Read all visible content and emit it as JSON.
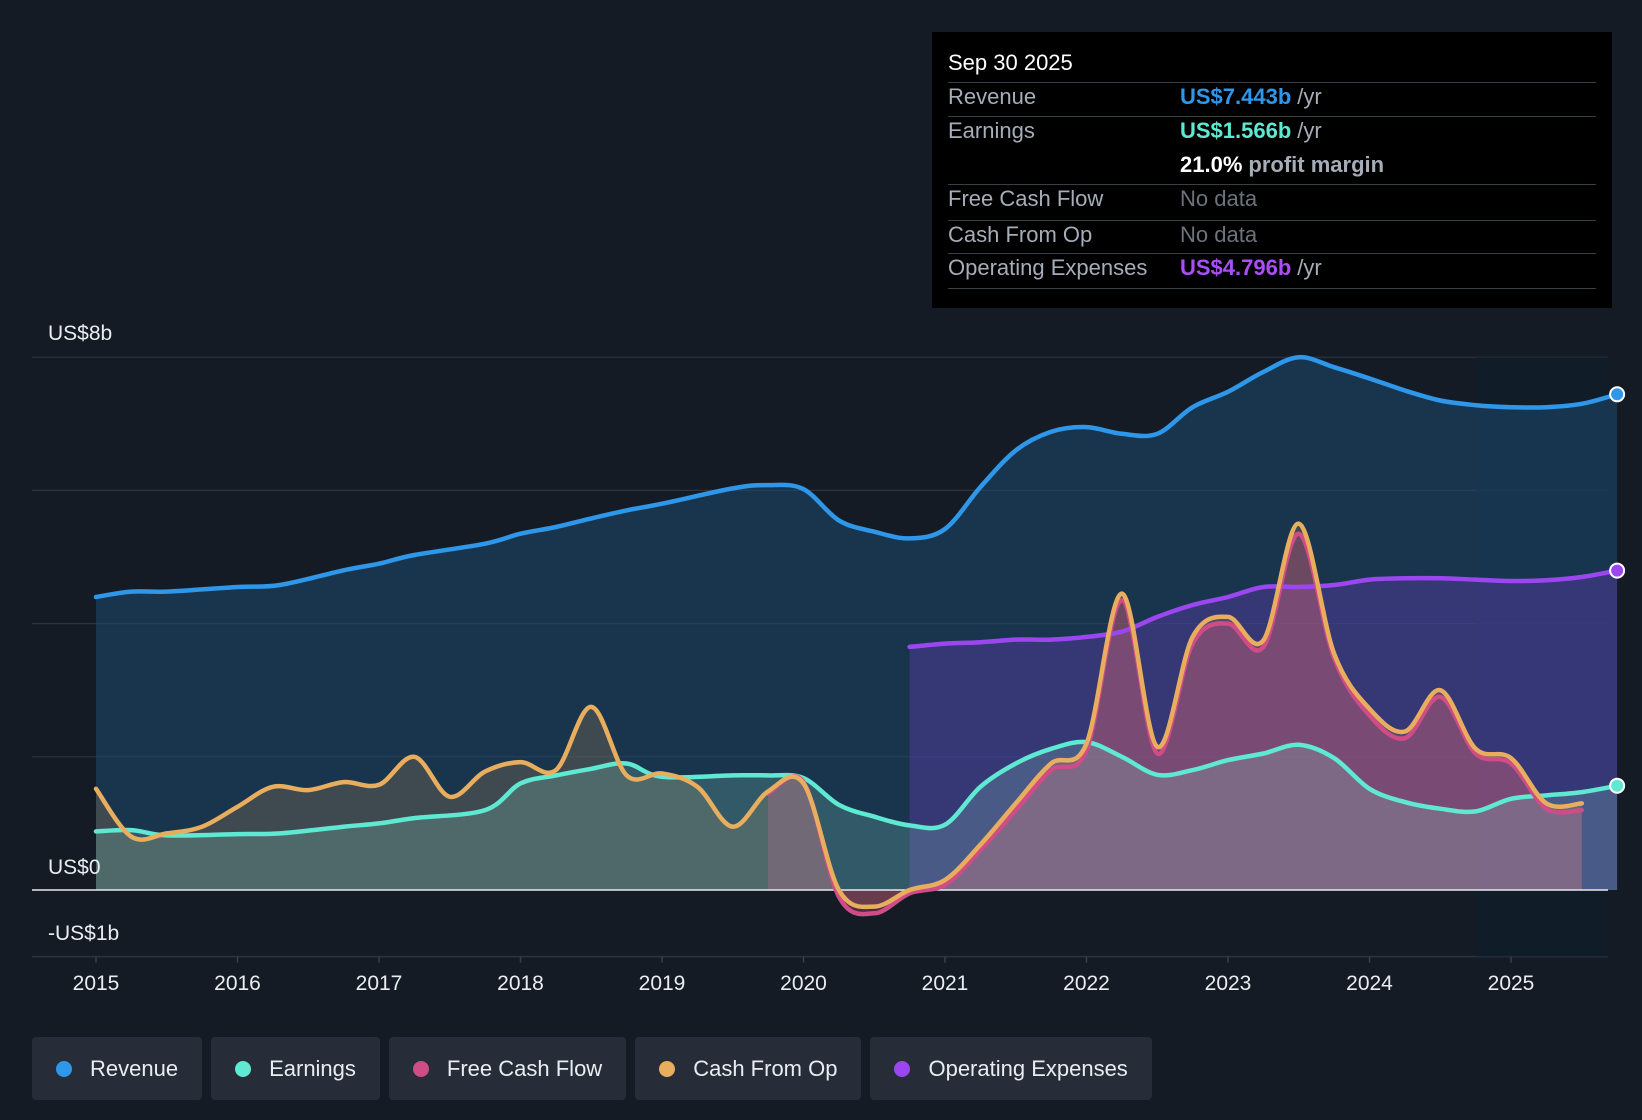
{
  "chart_data": {
    "type": "area",
    "title": "",
    "y_tick_labels": [
      "US$8b",
      "US$0",
      "-US$1b"
    ],
    "ylim": [
      -1,
      8
    ],
    "x_tick_labels": [
      "2015",
      "2016",
      "2017",
      "2018",
      "2019",
      "2020",
      "2021",
      "2022",
      "2023",
      "2024",
      "2025"
    ],
    "xlim": [
      2015,
      2025.75
    ],
    "forecast_start": 2024.75,
    "series": [
      {
        "name": "Revenue",
        "color": "#2e97ea",
        "points": [
          [
            2015,
            4.4
          ],
          [
            2015.25,
            4.48
          ],
          [
            2015.5,
            4.48
          ],
          [
            2016,
            4.55
          ],
          [
            2016.3,
            4.58
          ],
          [
            2016.75,
            4.8
          ],
          [
            2017,
            4.9
          ],
          [
            2017.25,
            5.03
          ],
          [
            2017.75,
            5.2
          ],
          [
            2018,
            5.35
          ],
          [
            2018.25,
            5.45
          ],
          [
            2018.5,
            5.58
          ],
          [
            2018.75,
            5.7
          ],
          [
            2019,
            5.8
          ],
          [
            2019.5,
            6.03
          ],
          [
            2019.75,
            6.08
          ],
          [
            2020,
            6.02
          ],
          [
            2020.25,
            5.55
          ],
          [
            2020.5,
            5.38
          ],
          [
            2020.75,
            5.28
          ],
          [
            2021,
            5.42
          ],
          [
            2021.25,
            6.05
          ],
          [
            2021.5,
            6.6
          ],
          [
            2021.75,
            6.88
          ],
          [
            2022,
            6.95
          ],
          [
            2022.25,
            6.85
          ],
          [
            2022.5,
            6.85
          ],
          [
            2022.75,
            7.25
          ],
          [
            2023,
            7.48
          ],
          [
            2023.25,
            7.78
          ],
          [
            2023.5,
            8.0
          ],
          [
            2023.75,
            7.85
          ],
          [
            2024,
            7.68
          ],
          [
            2024.25,
            7.5
          ],
          [
            2024.5,
            7.35
          ],
          [
            2024.75,
            7.28
          ],
          [
            2025,
            7.25
          ],
          [
            2025.25,
            7.25
          ],
          [
            2025.5,
            7.3
          ],
          [
            2025.75,
            7.443
          ]
        ]
      },
      {
        "name": "Earnings",
        "color": "#5fe8d2",
        "points": [
          [
            2015,
            0.88
          ],
          [
            2015.25,
            0.9
          ],
          [
            2015.5,
            0.82
          ],
          [
            2016,
            0.84
          ],
          [
            2016.3,
            0.85
          ],
          [
            2016.75,
            0.95
          ],
          [
            2017,
            1.0
          ],
          [
            2017.25,
            1.08
          ],
          [
            2017.75,
            1.2
          ],
          [
            2018,
            1.6
          ],
          [
            2018.25,
            1.72
          ],
          [
            2018.5,
            1.82
          ],
          [
            2018.75,
            1.9
          ],
          [
            2019,
            1.7
          ],
          [
            2019.5,
            1.72
          ],
          [
            2019.75,
            1.72
          ],
          [
            2020,
            1.68
          ],
          [
            2020.25,
            1.28
          ],
          [
            2020.5,
            1.1
          ],
          [
            2020.75,
            0.97
          ],
          [
            2021,
            0.98
          ],
          [
            2021.25,
            1.55
          ],
          [
            2021.5,
            1.9
          ],
          [
            2021.75,
            2.12
          ],
          [
            2022,
            2.22
          ],
          [
            2022.25,
            2.0
          ],
          [
            2022.5,
            1.73
          ],
          [
            2022.75,
            1.8
          ],
          [
            2023,
            1.95
          ],
          [
            2023.25,
            2.05
          ],
          [
            2023.5,
            2.18
          ],
          [
            2023.75,
            1.98
          ],
          [
            2024,
            1.52
          ],
          [
            2024.25,
            1.32
          ],
          [
            2024.5,
            1.22
          ],
          [
            2024.75,
            1.18
          ],
          [
            2025,
            1.37
          ],
          [
            2025.25,
            1.42
          ],
          [
            2025.5,
            1.47
          ],
          [
            2025.75,
            1.566
          ]
        ]
      },
      {
        "name": "Free Cash Flow",
        "color": "#d04c87",
        "points": [
          [
            2019.75,
            1.45
          ],
          [
            2020,
            1.62
          ],
          [
            2020.25,
            -0.1
          ],
          [
            2020.5,
            -0.35
          ],
          [
            2020.75,
            -0.05
          ],
          [
            2021,
            0.08
          ],
          [
            2021.25,
            0.6
          ],
          [
            2021.5,
            1.2
          ],
          [
            2021.75,
            1.8
          ],
          [
            2022,
            2.1
          ],
          [
            2022.25,
            4.35
          ],
          [
            2022.5,
            2.05
          ],
          [
            2022.75,
            3.7
          ],
          [
            2023,
            4.0
          ],
          [
            2023.25,
            3.65
          ],
          [
            2023.5,
            5.35
          ],
          [
            2023.75,
            3.48
          ],
          [
            2024,
            2.62
          ],
          [
            2024.25,
            2.28
          ],
          [
            2024.5,
            2.9
          ],
          [
            2024.75,
            2.05
          ],
          [
            2025,
            1.9
          ],
          [
            2025.25,
            1.22
          ],
          [
            2025.5,
            1.2
          ]
        ]
      },
      {
        "name": "Cash From Op",
        "color": "#e8ae5e",
        "points": [
          [
            2015,
            1.52
          ],
          [
            2015.25,
            0.8
          ],
          [
            2015.5,
            0.85
          ],
          [
            2015.75,
            0.95
          ],
          [
            2016,
            1.25
          ],
          [
            2016.25,
            1.55
          ],
          [
            2016.5,
            1.5
          ],
          [
            2016.75,
            1.62
          ],
          [
            2017,
            1.58
          ],
          [
            2017.25,
            2.0
          ],
          [
            2017.5,
            1.4
          ],
          [
            2017.75,
            1.78
          ],
          [
            2018,
            1.92
          ],
          [
            2018.25,
            1.8
          ],
          [
            2018.5,
            2.75
          ],
          [
            2018.75,
            1.72
          ],
          [
            2019,
            1.75
          ],
          [
            2019.25,
            1.55
          ],
          [
            2019.5,
            0.95
          ],
          [
            2019.75,
            1.48
          ],
          [
            2020,
            1.6
          ],
          [
            2020.25,
            0.0
          ],
          [
            2020.5,
            -0.25
          ],
          [
            2020.75,
            0.0
          ],
          [
            2021,
            0.15
          ],
          [
            2021.25,
            0.68
          ],
          [
            2021.5,
            1.3
          ],
          [
            2021.75,
            1.9
          ],
          [
            2022,
            2.2
          ],
          [
            2022.25,
            4.45
          ],
          [
            2022.5,
            2.15
          ],
          [
            2022.75,
            3.8
          ],
          [
            2023,
            4.1
          ],
          [
            2023.25,
            3.75
          ],
          [
            2023.5,
            5.5
          ],
          [
            2023.75,
            3.55
          ],
          [
            2024,
            2.72
          ],
          [
            2024.25,
            2.38
          ],
          [
            2024.5,
            3.0
          ],
          [
            2024.75,
            2.12
          ],
          [
            2025,
            1.98
          ],
          [
            2025.25,
            1.3
          ],
          [
            2025.5,
            1.3
          ]
        ]
      },
      {
        "name": "Operating Expenses",
        "color": "#9c46f0",
        "points": [
          [
            2020.75,
            3.65
          ],
          [
            2021,
            3.7
          ],
          [
            2021.25,
            3.72
          ],
          [
            2021.5,
            3.76
          ],
          [
            2021.75,
            3.76
          ],
          [
            2022,
            3.8
          ],
          [
            2022.25,
            3.88
          ],
          [
            2022.5,
            4.1
          ],
          [
            2022.75,
            4.28
          ],
          [
            2023,
            4.4
          ],
          [
            2023.25,
            4.55
          ],
          [
            2023.5,
            4.55
          ],
          [
            2023.75,
            4.58
          ],
          [
            2024,
            4.66
          ],
          [
            2024.25,
            4.68
          ],
          [
            2024.5,
            4.68
          ],
          [
            2024.75,
            4.66
          ],
          [
            2025,
            4.64
          ],
          [
            2025.25,
            4.65
          ],
          [
            2025.5,
            4.7
          ],
          [
            2025.75,
            4.796
          ]
        ]
      }
    ]
  },
  "tooltip": {
    "date": "Sep 30 2025",
    "revenue_label": "Revenue",
    "revenue_value": "US$7.443b",
    "revenue_unit": "/yr",
    "earnings_label": "Earnings",
    "earnings_value": "US$1.566b",
    "earnings_unit": "/yr",
    "margin_value": "21.0%",
    "margin_label": "profit margin",
    "fcf_label": "Free Cash Flow",
    "fcf_value": "No data",
    "cfo_label": "Cash From Op",
    "cfo_value": "No data",
    "opex_label": "Operating Expenses",
    "opex_value": "US$4.796b",
    "opex_unit": "/yr"
  },
  "legend": [
    {
      "label": "Revenue",
      "color": "#2e97ea"
    },
    {
      "label": "Earnings",
      "color": "#5fe8d2"
    },
    {
      "label": "Free Cash Flow",
      "color": "#d04c87"
    },
    {
      "label": "Cash From Op",
      "color": "#e8ae5e"
    },
    {
      "label": "Operating Expenses",
      "color": "#9c46f0"
    }
  ]
}
